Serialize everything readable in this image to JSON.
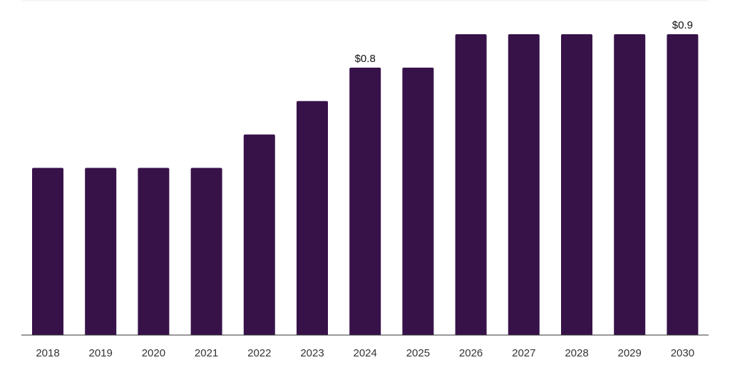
{
  "chart_data": {
    "type": "bar",
    "title": "",
    "xlabel": "",
    "ylabel": "",
    "categories": [
      "2018",
      "2019",
      "2020",
      "2021",
      "2022",
      "2023",
      "2024",
      "2025",
      "2026",
      "2027",
      "2028",
      "2029",
      "2030"
    ],
    "values": [
      0.5,
      0.5,
      0.5,
      0.5,
      0.6,
      0.7,
      0.8,
      0.8,
      0.9,
      0.9,
      0.9,
      0.9,
      0.9
    ],
    "data_labels": [
      {
        "category": "2024",
        "text": "$0.8"
      },
      {
        "category": "2030",
        "text": "$0.9"
      }
    ],
    "ylim": [
      0,
      0.9
    ],
    "grid": false,
    "bar_color": "#371249",
    "axis_color": "#333333"
  }
}
